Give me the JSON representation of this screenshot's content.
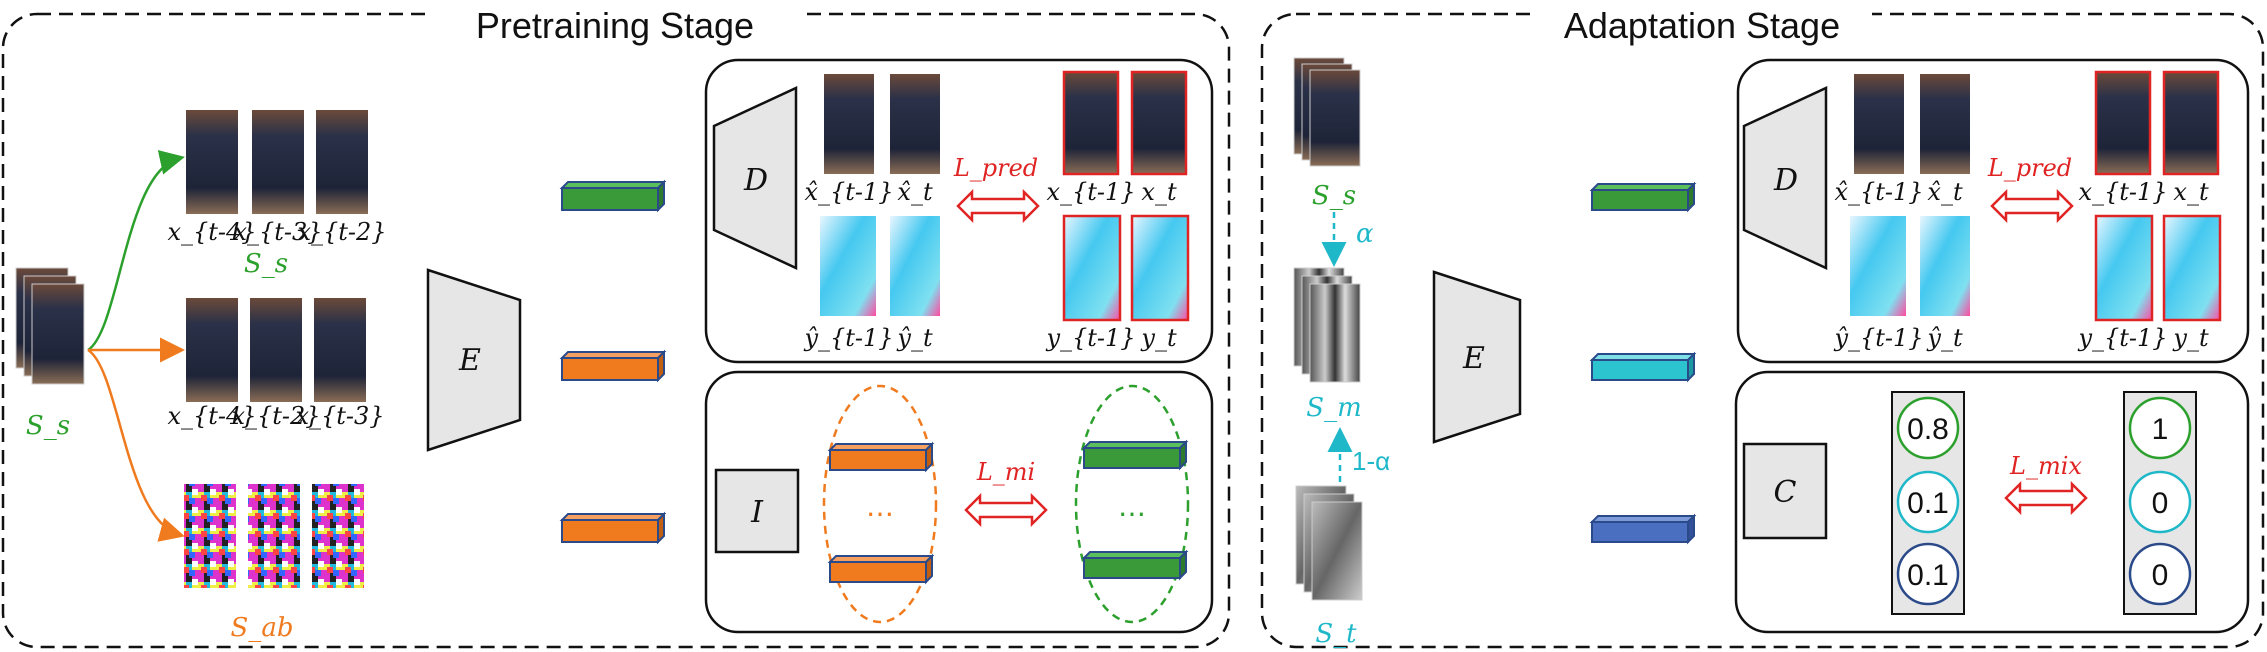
{
  "pretraining": {
    "title": "Pretraining Stage",
    "ss_left": "S_s",
    "ss_green": "S_s",
    "sab": "S_ab",
    "row1_labels": [
      "x_{t-4}",
      "x_{t-3}",
      "x_{t-2}"
    ],
    "row2_labels": [
      "x_{t-4}",
      "x_{t-2}",
      "x_{t-3}"
    ],
    "encoder": "E",
    "decoder": "D",
    "mi_module": "I",
    "loss_pred": "L_pred",
    "loss_mi": "L_mi",
    "pred_labels": [
      "x̂_{t-1}",
      "x̂_t",
      "x_{t-1}",
      "x_t"
    ],
    "flow_labels": [
      "ŷ_{t-1}",
      "ŷ_t",
      "y_{t-1}",
      "y_t"
    ],
    "dots": "…"
  },
  "adaptation": {
    "title": "Adaptation Stage",
    "ss": "S_s",
    "sm": "S_m",
    "st": "S_t",
    "alpha": "α",
    "one_minus_alpha": "1-α",
    "encoder": "E",
    "decoder": "D",
    "classifier": "C",
    "loss_pred": "L_pred",
    "loss_mix": "L_mix",
    "pred_labels": [
      "x̂_{t-1}",
      "x̂_t",
      "x_{t-1}",
      "x_t"
    ],
    "flow_labels": [
      "ŷ_{t-1}",
      "ŷ_t",
      "y_{t-1}",
      "y_t"
    ],
    "pred_probs": [
      "0.8",
      "0.1",
      "0.1"
    ],
    "target_probs": [
      "1",
      "0",
      "0"
    ]
  },
  "colors": {
    "green": "#2ca02c",
    "orange": "#f07a1e",
    "cyan": "#1fb8c9",
    "blue": "#4a6fc1",
    "red": "#e02424",
    "feature_green": "#3a9a3a",
    "feature_orange": "#f07a1e",
    "feature_cyan": "#2cc4cf",
    "feature_blue": "#4a6fc1"
  }
}
